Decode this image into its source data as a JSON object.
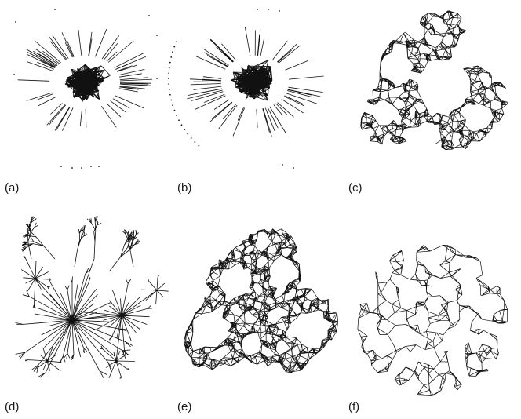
{
  "panels": [
    {
      "id": "a",
      "label": "(a)"
    },
    {
      "id": "b",
      "label": "(b)"
    },
    {
      "id": "c",
      "label": "(c)"
    },
    {
      "id": "d",
      "label": "(d)"
    },
    {
      "id": "e",
      "label": "(e)"
    },
    {
      "id": "f",
      "label": "(f)"
    }
  ],
  "colors": {
    "edge": "#111111",
    "background": "#ffffff"
  }
}
